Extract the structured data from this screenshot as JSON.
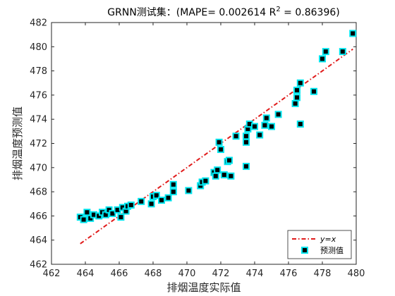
{
  "chart_data": {
    "type": "scatter",
    "title": "GRNN测试集：(MAPE= 0.002614 R",
    "title_superscript": "2",
    "title_suffix": " = 0.86396)",
    "xlabel": "排烟温度实际值",
    "ylabel": "排烟温度预测值",
    "xlim": [
      462,
      480
    ],
    "ylim": [
      462,
      482
    ],
    "x_ticks": [
      "462",
      "464",
      "466",
      "468",
      "470",
      "472",
      "474",
      "476",
      "478",
      "480"
    ],
    "y_ticks": [
      "462",
      "464",
      "466",
      "468",
      "470",
      "472",
      "474",
      "476",
      "478",
      "480",
      "482"
    ],
    "grid": false,
    "legend_position": "bottom-right",
    "colors": {
      "fit_line": "#e01b1b",
      "marker_fill": "#000000",
      "marker_edge": "#00e5ee"
    },
    "series": [
      {
        "name": "y=x",
        "kind": "line",
        "style": "dash-dot",
        "x": [
          463.7,
          479.8
        ],
        "y": [
          463.7,
          479.8
        ]
      },
      {
        "name": "预测值",
        "kind": "scatter",
        "marker": "square",
        "points": [
          [
            463.7,
            465.9
          ],
          [
            463.9,
            465.7
          ],
          [
            464.1,
            466.3
          ],
          [
            464.3,
            465.8
          ],
          [
            464.5,
            466.1
          ],
          [
            464.8,
            466.0
          ],
          [
            465.0,
            466.3
          ],
          [
            465.2,
            466.1
          ],
          [
            465.4,
            466.5
          ],
          [
            465.6,
            466.2
          ],
          [
            465.9,
            466.5
          ],
          [
            466.1,
            465.9
          ],
          [
            466.2,
            466.7
          ],
          [
            466.4,
            466.4
          ],
          [
            466.5,
            466.8
          ],
          [
            466.7,
            466.9
          ],
          [
            467.3,
            467.2
          ],
          [
            467.9,
            467.0
          ],
          [
            468.0,
            467.6
          ],
          [
            468.2,
            467.7
          ],
          [
            468.5,
            467.3
          ],
          [
            468.9,
            467.5
          ],
          [
            469.2,
            468.0
          ],
          [
            469.2,
            468.6
          ],
          [
            470.1,
            468.1
          ],
          [
            470.8,
            468.5
          ],
          [
            470.9,
            468.8
          ],
          [
            471.1,
            468.9
          ],
          [
            471.6,
            469.6
          ],
          [
            471.7,
            469.3
          ],
          [
            471.8,
            469.8
          ],
          [
            471.9,
            472.1
          ],
          [
            472.0,
            471.5
          ],
          [
            472.2,
            469.4
          ],
          [
            472.4,
            470.5
          ],
          [
            472.5,
            470.6
          ],
          [
            472.6,
            469.3
          ],
          [
            472.9,
            472.6
          ],
          [
            473.5,
            470.1
          ],
          [
            473.5,
            472.1
          ],
          [
            473.5,
            472.6
          ],
          [
            473.6,
            473.2
          ],
          [
            473.7,
            473.6
          ],
          [
            474.0,
            473.4
          ],
          [
            474.3,
            472.7
          ],
          [
            474.6,
            473.5
          ],
          [
            474.7,
            474.1
          ],
          [
            475.0,
            473.4
          ],
          [
            475.4,
            474.4
          ],
          [
            476.4,
            475.3
          ],
          [
            476.5,
            475.8
          ],
          [
            476.5,
            476.4
          ],
          [
            476.7,
            477.0
          ],
          [
            476.7,
            473.6
          ],
          [
            477.5,
            476.3
          ],
          [
            478.0,
            479.0
          ],
          [
            478.2,
            479.6
          ],
          [
            479.2,
            479.6
          ],
          [
            479.8,
            481.1
          ]
        ]
      }
    ]
  }
}
